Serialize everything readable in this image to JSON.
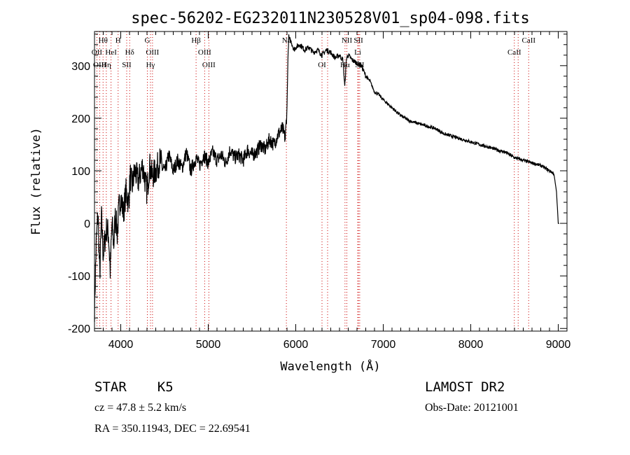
{
  "chart_data": {
    "type": "line",
    "title": "spec-56202-EG232011N230528V01_sp04-098.fits",
    "xlabel": "Wavelength (Å)",
    "ylabel": "Flux (relative)",
    "xlim": [
      3700,
      9100
    ],
    "ylim": [
      -205,
      365
    ],
    "x_ticks": [
      4000,
      5000,
      6000,
      7000,
      8000,
      9000
    ],
    "y_ticks": [
      -200,
      -100,
      0,
      100,
      200,
      300
    ],
    "grid": false,
    "series": [
      {
        "x": [
          3700,
          3720,
          3740,
          3760,
          3780,
          3800,
          3820,
          3840,
          3860,
          3880,
          3900,
          3920,
          3940,
          3960,
          3980,
          4000,
          4030,
          4060,
          4090,
          4110,
          4130,
          4160,
          4200,
          4250,
          4300,
          4330,
          4360,
          4400,
          4450,
          4500,
          4550,
          4600,
          4650,
          4700,
          4750,
          4800,
          4860,
          4900,
          4950,
          5000,
          5050,
          5100,
          5150,
          5200,
          5250,
          5300,
          5350,
          5400,
          5450,
          5500,
          5550,
          5600,
          5650,
          5700,
          5750,
          5800,
          5850,
          5880,
          5900,
          5910,
          5920,
          5930,
          5950,
          5980,
          6000,
          6050,
          6100,
          6150,
          6200,
          6250,
          6300,
          6350,
          6400,
          6450,
          6500,
          6540,
          6560,
          6580,
          6600,
          6650,
          6700,
          6750,
          6800,
          6850,
          6900,
          6950,
          7000,
          7100,
          7200,
          7300,
          7400,
          7500,
          7600,
          7700,
          7800,
          7900,
          8000,
          8100,
          8200,
          8300,
          8400,
          8500,
          8600,
          8700,
          8800,
          8900,
          8950,
          8980,
          8990,
          9000,
          9010
        ],
        "y": [
          -160,
          -40,
          20,
          -100,
          10,
          -60,
          -30,
          -10,
          -20,
          -90,
          0,
          -40,
          20,
          -20,
          30,
          50,
          20,
          60,
          40,
          90,
          70,
          100,
          80,
          110,
          60,
          110,
          90,
          100,
          120,
          95,
          130,
          100,
          120,
          105,
          135,
          100,
          125,
          110,
          130,
          115,
          135,
          120,
          130,
          115,
          140,
          125,
          130,
          120,
          140,
          130,
          135,
          150,
          140,
          160,
          150,
          170,
          180,
          160,
          220,
          310,
          355,
          350,
          345,
          330,
          335,
          340,
          330,
          335,
          325,
          330,
          320,
          330,
          325,
          315,
          320,
          310,
          260,
          315,
          320,
          310,
          305,
          300,
          280,
          270,
          250,
          245,
          235,
          220,
          205,
          195,
          190,
          185,
          180,
          170,
          165,
          160,
          155,
          150,
          145,
          140,
          135,
          125,
          120,
          115,
          110,
          100,
          95,
          60,
          30,
          0,
          0
        ]
      }
    ]
  },
  "line_markers": [
    {
      "label": "Hθ",
      "wavelength": 3798,
      "row": 0
    },
    {
      "label": "H",
      "wavelength": 3970,
      "row": 0
    },
    {
      "label": "G",
      "wavelength": 4304,
      "row": 0
    },
    {
      "label": "Hβ",
      "wavelength": 4861,
      "row": 0
    },
    {
      "label": "Na",
      "wavelength": 5893,
      "row": 0
    },
    {
      "label": "NII",
      "wavelength": 6584,
      "row": 0
    },
    {
      "label": "SII",
      "wavelength": 6717,
      "row": 0
    },
    {
      "label": "CaII",
      "wavelength": 8662,
      "row": 0
    },
    {
      "label": "OII",
      "wavelength": 3727,
      "row": 1
    },
    {
      "label": "HeI",
      "wavelength": 3889,
      "row": 1
    },
    {
      "label": "Hδ",
      "wavelength": 4102,
      "row": 1
    },
    {
      "label": "OIII",
      "wavelength": 4363,
      "row": 1
    },
    {
      "label": "OIII",
      "wavelength": 4959,
      "row": 1
    },
    {
      "label": "Li",
      "wavelength": 6708,
      "row": 1
    },
    {
      "label": "CaII",
      "wavelength": 8498,
      "row": 1
    },
    {
      "label": "OIII",
      "wavelength": 3760,
      "row": 2
    },
    {
      "label": "Hη",
      "wavelength": 3835,
      "row": 2
    },
    {
      "label": "SII",
      "wavelength": 4068,
      "row": 2
    },
    {
      "label": "Hγ",
      "wavelength": 4340,
      "row": 2
    },
    {
      "label": "OIII",
      "wavelength": 5007,
      "row": 2
    },
    {
      "label": "OI",
      "wavelength": 6300,
      "row": 2
    },
    {
      "label": "Hα",
      "wavelength": 6563,
      "row": 2
    },
    {
      "label": "SII",
      "wavelength": 6731,
      "row": 2
    }
  ],
  "marker_line_wavelengths": [
    3727,
    3760,
    3798,
    3835,
    3889,
    3970,
    4068,
    4102,
    4304,
    4340,
    4363,
    4861,
    4959,
    5007,
    5893,
    6300,
    6364,
    6563,
    6584,
    6708,
    6717,
    6731,
    8498,
    8542,
    8662
  ],
  "colors": {
    "spectrum": "#000000",
    "marker_lines": "#cc0000",
    "axes": "#000000",
    "background": "#ffffff"
  },
  "info": {
    "object_class": "STAR",
    "subclass": "K5",
    "redshift": "cz = 47.8 ± 5.2 km/s",
    "coords": "RA = 350.11943, DEC =  22.69541",
    "survey": "LAMOST DR2",
    "obs_date": "Obs-Date: 20121001"
  }
}
